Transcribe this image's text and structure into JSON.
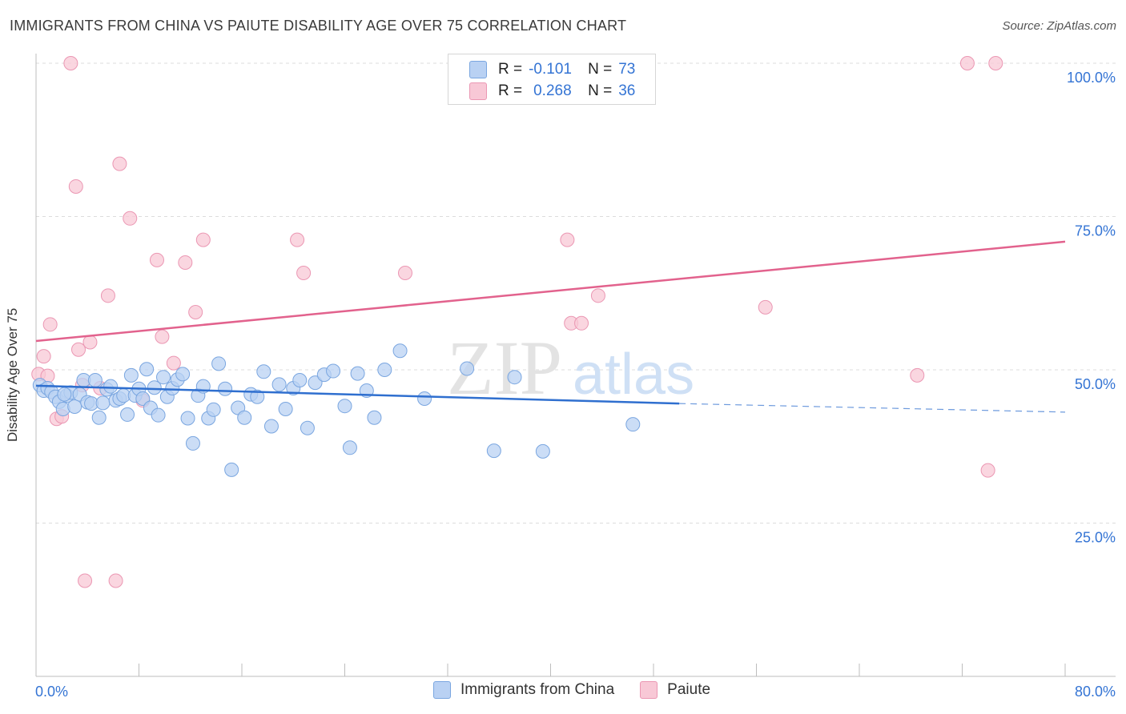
{
  "title": "IMMIGRANTS FROM CHINA VS PAIUTE DISABILITY AGE OVER 75 CORRELATION CHART",
  "source": "Source: ZipAtlas.com",
  "watermark": {
    "zip": "ZIP",
    "atlas": "atlas"
  },
  "legend": {
    "china": {
      "r_label": "R =",
      "r_value": "-0.101",
      "n_label": "N =",
      "n_value": "73"
    },
    "paiute": {
      "r_label": "R =",
      "r_value": "0.268",
      "n_label": "N =",
      "n_value": "36"
    }
  },
  "bottom_legend": {
    "china": "Immigrants from China",
    "paiute": "Paiute"
  },
  "colors": {
    "china_fill": "#b9d1f3",
    "china_stroke": "#7aa6e0",
    "china_line": "#2f6fcf",
    "paiute_fill": "#f8c8d6",
    "paiute_stroke": "#eb97b3",
    "paiute_line": "#e2628d",
    "tick_text": "#3474d4"
  },
  "chart_data": {
    "type": "scatter",
    "title": "IMMIGRANTS FROM CHINA VS PAIUTE DISABILITY AGE OVER 75 CORRELATION CHART",
    "xlabel": "",
    "ylabel": "Disability Age Over 75",
    "xlim": [
      0,
      80
    ],
    "ylim": [
      0,
      100
    ],
    "x_tick_labels": [
      "0.0%",
      "80.0%"
    ],
    "y_ticks": [
      {
        "value": 100,
        "label": "100.0%"
      },
      {
        "value": 75,
        "label": "75.0%"
      },
      {
        "value": 50,
        "label": "50.0%"
      },
      {
        "value": 25,
        "label": "25.0%"
      }
    ],
    "grid": true,
    "series": [
      {
        "name": "Immigrants from China",
        "r": -0.101,
        "n": 73,
        "trend": {
          "x0": 0,
          "y0": 47.4,
          "x1": 50,
          "y1": 44.5,
          "dashed_to_x": 80,
          "dashed_to_y": 43.1
        },
        "points": [
          [
            0.3,
            47.5
          ],
          [
            0.6,
            46.6
          ],
          [
            0.9,
            47.0
          ],
          [
            1.2,
            46.4
          ],
          [
            1.5,
            45.6
          ],
          [
            1.8,
            44.8
          ],
          [
            2.1,
            43.6
          ],
          [
            2.4,
            45.8
          ],
          [
            2.7,
            46.3
          ],
          [
            3.0,
            44.0
          ],
          [
            3.4,
            46.0
          ],
          [
            3.7,
            48.3
          ],
          [
            4.0,
            44.7
          ],
          [
            4.3,
            44.5
          ],
          [
            4.6,
            48.3
          ],
          [
            4.9,
            42.2
          ],
          [
            5.2,
            44.6
          ],
          [
            5.5,
            46.8
          ],
          [
            5.8,
            47.3
          ],
          [
            6.2,
            45.0
          ],
          [
            6.5,
            45.3
          ],
          [
            6.8,
            45.8
          ],
          [
            7.1,
            42.7
          ],
          [
            7.4,
            49.1
          ],
          [
            7.7,
            45.8
          ],
          [
            8.0,
            46.9
          ],
          [
            8.3,
            45.3
          ],
          [
            8.6,
            50.1
          ],
          [
            8.9,
            43.8
          ],
          [
            9.2,
            47.1
          ],
          [
            9.5,
            42.6
          ],
          [
            9.9,
            48.8
          ],
          [
            10.2,
            45.6
          ],
          [
            10.6,
            47.0
          ],
          [
            11.0,
            48.4
          ],
          [
            11.4,
            49.3
          ],
          [
            11.8,
            42.1
          ],
          [
            12.2,
            38.0
          ],
          [
            12.6,
            45.8
          ],
          [
            13.0,
            47.3
          ],
          [
            13.4,
            42.1
          ],
          [
            13.8,
            43.5
          ],
          [
            14.2,
            51.0
          ],
          [
            14.7,
            46.9
          ],
          [
            15.2,
            33.7
          ],
          [
            15.7,
            43.8
          ],
          [
            16.2,
            42.2
          ],
          [
            16.7,
            46.0
          ],
          [
            17.2,
            45.6
          ],
          [
            17.7,
            49.7
          ],
          [
            18.3,
            40.8
          ],
          [
            18.9,
            47.6
          ],
          [
            19.4,
            43.6
          ],
          [
            20.0,
            47.0
          ],
          [
            20.5,
            48.3
          ],
          [
            21.1,
            40.5
          ],
          [
            21.7,
            47.9
          ],
          [
            22.4,
            49.2
          ],
          [
            23.1,
            49.8
          ],
          [
            24.0,
            44.1
          ],
          [
            24.4,
            37.3
          ],
          [
            25.0,
            49.4
          ],
          [
            25.7,
            46.6
          ],
          [
            26.3,
            42.2
          ],
          [
            27.1,
            50.0
          ],
          [
            28.3,
            53.1
          ],
          [
            30.2,
            45.3
          ],
          [
            33.5,
            50.2
          ],
          [
            35.6,
            36.8
          ],
          [
            37.2,
            48.8
          ],
          [
            39.4,
            36.7
          ],
          [
            46.4,
            41.1
          ],
          [
            2.2,
            46.0
          ]
        ]
      },
      {
        "name": "Paiute",
        "r": 0.268,
        "n": 36,
        "trend": {
          "x0": 0,
          "y0": 54.7,
          "x1": 80,
          "y1": 70.9
        },
        "points": [
          [
            0.2,
            49.3
          ],
          [
            0.6,
            52.2
          ],
          [
            0.9,
            49.0
          ],
          [
            1.1,
            57.4
          ],
          [
            1.6,
            42.0
          ],
          [
            2.0,
            42.4
          ],
          [
            2.7,
            100.0
          ],
          [
            3.1,
            79.9
          ],
          [
            3.3,
            53.3
          ],
          [
            3.6,
            47.5
          ],
          [
            3.8,
            15.6
          ],
          [
            4.2,
            54.5
          ],
          [
            5.0,
            47.0
          ],
          [
            5.6,
            62.1
          ],
          [
            6.2,
            15.6
          ],
          [
            6.5,
            83.6
          ],
          [
            7.3,
            74.7
          ],
          [
            8.3,
            45.0
          ],
          [
            9.4,
            67.9
          ],
          [
            9.8,
            55.4
          ],
          [
            10.7,
            51.1
          ],
          [
            11.6,
            67.5
          ],
          [
            12.4,
            59.4
          ],
          [
            13.0,
            71.2
          ],
          [
            20.3,
            71.2
          ],
          [
            20.8,
            65.8
          ],
          [
            28.7,
            65.8
          ],
          [
            41.3,
            71.2
          ],
          [
            41.6,
            57.6
          ],
          [
            42.4,
            57.6
          ],
          [
            43.7,
            62.1
          ],
          [
            56.7,
            60.2
          ],
          [
            68.5,
            49.1
          ],
          [
            72.4,
            100.0
          ],
          [
            74.6,
            100.0
          ],
          [
            74.0,
            33.6
          ]
        ]
      }
    ]
  }
}
